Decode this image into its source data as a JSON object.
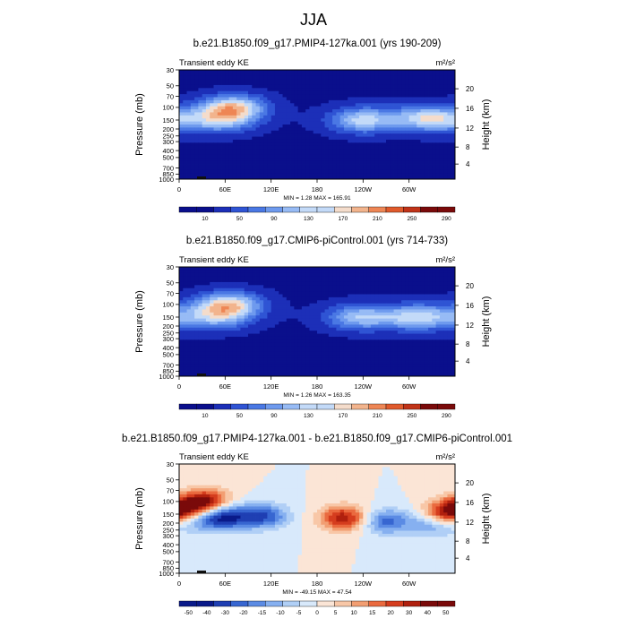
{
  "figure": {
    "title": "JJA",
    "cbar_scale_top": [
      "#0a0f8c",
      "#1c2fb8",
      "#2f54d4",
      "#4a78e4",
      "#6e9aee",
      "#97bbf5",
      "#c3daf8",
      "#f4dccb",
      "#f2b48d",
      "#ee8655",
      "#e05a2c",
      "#c03318",
      "#7a0a0a"
    ],
    "cbar_scale_diff": [
      "#0a1a8a",
      "#1f3fb3",
      "#3766d1",
      "#5b8be4",
      "#86b0f0",
      "#b0cff6",
      "#d8e9fb",
      "#fbe5d6",
      "#f8c7a7",
      "#f29e72",
      "#ea6a3f",
      "#d53d1e",
      "#b0200e",
      "#7a0a0a"
    ]
  },
  "chart_data": [
    {
      "type": "heatmap",
      "title": "b.e21.B1850.f09_g17.PMIP4-127ka.001 (yrs 190-209)",
      "left_label": "Transient eddy KE",
      "units": "m²/s²",
      "ylabel": "Pressure (mb)",
      "ylabel_right": "Height (km)",
      "y_ticks": [
        "30",
        "50",
        "70",
        "100",
        "150",
        "200",
        "250",
        "300",
        "400",
        "500",
        "700",
        "850",
        "1000"
      ],
      "y_ticks_right": [
        "20",
        "16",
        "12",
        "8",
        "4"
      ],
      "x_ticks": [
        "0",
        "60E",
        "120E",
        "180",
        "120W",
        "60W"
      ],
      "min_max": "MIN =   1.28  MAX = 165.91",
      "colorbar_labels": [
        "10",
        "50",
        "90",
        "130",
        "170",
        "210",
        "250",
        "290"
      ],
      "colorbar_levels": 16,
      "blobs": [
        {
          "lon": 70,
          "p": 100,
          "amp": 165.91
        },
        {
          "lon": 55,
          "p": 150,
          "amp": 120
        },
        {
          "lon": 240,
          "p": 150,
          "amp": 140
        },
        {
          "lon": 315,
          "p": 140,
          "amp": 110
        },
        {
          "lon": 350,
          "p": 150,
          "amp": 90
        }
      ],
      "min": 1.28,
      "max": 165.91
    },
    {
      "type": "heatmap",
      "title": "b.e21.B1850.f09_g17.CMIP6-piControl.001 (yrs 714-733)",
      "left_label": "Transient eddy KE",
      "units": "m²/s²",
      "ylabel": "Pressure (mb)",
      "ylabel_right": "Height (km)",
      "y_ticks": [
        "30",
        "50",
        "70",
        "100",
        "150",
        "200",
        "250",
        "300",
        "400",
        "500",
        "700",
        "850",
        "1000"
      ],
      "y_ticks_right": [
        "20",
        "16",
        "12",
        "8",
        "4"
      ],
      "x_ticks": [
        "0",
        "60E",
        "120E",
        "180",
        "120W",
        "60W"
      ],
      "min_max": "MIN =   1.26  MAX = 163.35",
      "colorbar_labels": [
        "10",
        "50",
        "90",
        "130",
        "170",
        "210",
        "250",
        "290"
      ],
      "colorbar_levels": 16,
      "blobs": [
        {
          "lon": 65,
          "p": 100,
          "amp": 163.35
        },
        {
          "lon": 50,
          "p": 150,
          "amp": 110
        },
        {
          "lon": 235,
          "p": 150,
          "amp": 125
        },
        {
          "lon": 300,
          "p": 150,
          "amp": 110
        },
        {
          "lon": 345,
          "p": 150,
          "amp": 85
        }
      ],
      "min": 1.26,
      "max": 163.35
    },
    {
      "type": "heatmap",
      "title": "b.e21.B1850.f09_g17.PMIP4-127ka.001 - b.e21.B1850.f09_g17.CMIP6-piControl.001",
      "left_label": "Transient eddy KE",
      "units": "m²/s²",
      "ylabel": "Pressure (mb)",
      "ylabel_right": "Height (km)",
      "y_ticks": [
        "30",
        "50",
        "70",
        "100",
        "150",
        "200",
        "250",
        "300",
        "400",
        "500",
        "700",
        "850",
        "1000"
      ],
      "y_ticks_right": [
        "20",
        "16",
        "12",
        "8",
        "4"
      ],
      "x_ticks": [
        "0",
        "60E",
        "120E",
        "180",
        "120W",
        "60W"
      ],
      "min_max": "MIN = -49.15  MAX =  47.54",
      "colorbar_labels": [
        "-50",
        "-40",
        "-30",
        "-20",
        "-15",
        "-10",
        "-5",
        "0",
        "5",
        "10",
        "15",
        "20",
        "30",
        "40",
        "50"
      ],
      "colorbar_levels": 16,
      "blobs": [
        {
          "lon": 35,
          "p": 100,
          "amp": 47.54
        },
        {
          "lon": 8,
          "p": 130,
          "amp": 40
        },
        {
          "lon": 60,
          "p": 165,
          "amp": -49.15
        },
        {
          "lon": 110,
          "p": 160,
          "amp": -40
        },
        {
          "lon": 20,
          "p": 175,
          "amp": -30
        },
        {
          "lon": 215,
          "p": 170,
          "amp": 45
        },
        {
          "lon": 270,
          "p": 190,
          "amp": -35
        },
        {
          "lon": 350,
          "p": 150,
          "amp": 40
        },
        {
          "lon": 330,
          "p": 210,
          "amp": -25
        }
      ],
      "min": -49.15,
      "max": 47.54
    }
  ]
}
